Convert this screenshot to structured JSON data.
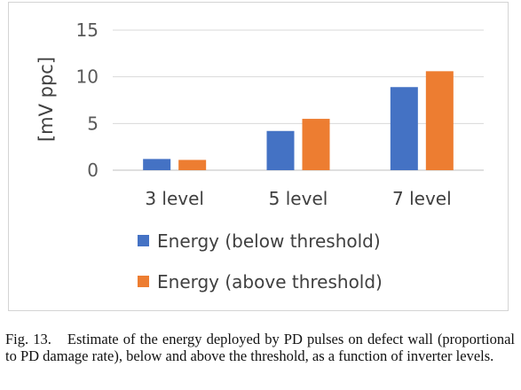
{
  "chart_data": {
    "type": "bar",
    "categories": [
      "3 level",
      "5 level",
      "7 level"
    ],
    "series": [
      {
        "name": "Energy (below threshold)",
        "values": [
          1.2,
          4.2,
          8.9
        ],
        "color": "#4472c4"
      },
      {
        "name": "Energy (above threshold)",
        "values": [
          1.1,
          5.5,
          10.6
        ],
        "color": "#ed7d31"
      }
    ],
    "ylabel": "[mV ppc]",
    "xlabel": "",
    "ylim": [
      0,
      15
    ],
    "yticks": [
      0,
      5,
      10,
      15
    ],
    "ytick_labels": [
      "0",
      "5",
      "10",
      "15"
    ],
    "grid": true,
    "legend_position": "bottom"
  },
  "caption": {
    "label": "Fig. 13.",
    "text": "Estimate of the energy deployed by PD pulses on defect wall (proportional to PD damage rate), below and above the threshold, as a function of inverter levels."
  }
}
